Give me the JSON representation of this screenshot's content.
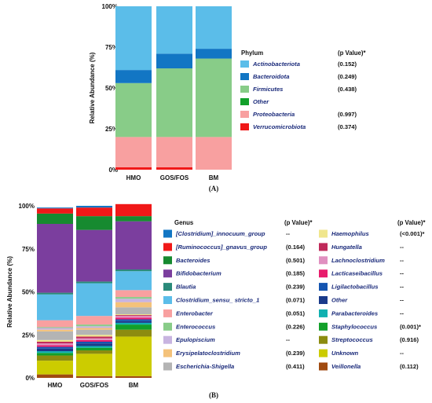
{
  "chart_data": [
    {
      "type": "bar",
      "stacked": true,
      "panel_label": "(A)",
      "ylabel": "Relative Abundance (%)",
      "y_ticks": [
        "0%",
        "25%",
        "50%",
        "75%",
        "100%"
      ],
      "ylim": [
        0,
        100
      ],
      "categories": [
        "HMO",
        "GOS/FOS",
        "BM"
      ],
      "legend_title": "Phylum",
      "legend_pvalue_title": "(p Value)*",
      "series": [
        {
          "name": "Verrucomicrobiota",
          "color": "#f01818",
          "pvalue": "(0.374)",
          "values": [
            1.5,
            1.5,
            0
          ]
        },
        {
          "name": "Proteobacteria",
          "color": "#f8a0a0",
          "pvalue": "(0.997)",
          "values": [
            18.5,
            18.5,
            20
          ]
        },
        {
          "name": "Other",
          "color": "#12a02a",
          "pvalue": "",
          "values": [
            0,
            0,
            0
          ]
        },
        {
          "name": "Firmicutes",
          "color": "#88cc88",
          "pvalue": "(0.438)",
          "values": [
            33,
            42,
            48
          ]
        },
        {
          "name": "Bacteroidota",
          "color": "#1276c4",
          "pvalue": "(0.249)",
          "values": [
            8,
            9,
            6
          ]
        },
        {
          "name": "Actinobacteriota",
          "color": "#5bbde9",
          "pvalue": "(0.152)",
          "values": [
            39,
            29,
            26
          ]
        }
      ]
    },
    {
      "type": "bar",
      "stacked": true,
      "panel_label": "(B)",
      "ylabel": "Relative Abundance (%)",
      "y_ticks": [
        "0%",
        "25%",
        "50%",
        "75%",
        "100%"
      ],
      "ylim": [
        0,
        100
      ],
      "categories": [
        "HMO",
        "GOS/FOS",
        "BM"
      ],
      "legend_title": "Genus",
      "legend_pvalue_title": "(p Value)*",
      "series": [
        {
          "name": "Veillonella",
          "color": "#a04a10",
          "pvalue": "(0.112)",
          "values": [
            2,
            1,
            1
          ]
        },
        {
          "name": "Unknown",
          "color": "#cccc00",
          "pvalue": "--",
          "values": [
            8,
            13,
            23
          ]
        },
        {
          "name": "Streptococcus",
          "color": "#8c8c10",
          "pvalue": "(0.916)",
          "values": [
            3,
            2,
            4
          ]
        },
        {
          "name": "Staphylococcus",
          "color": "#12a02a",
          "pvalue": "(0.001)*",
          "values": [
            1.5,
            1.5,
            3
          ]
        },
        {
          "name": "Parabacteroides",
          "color": "#10b0b0",
          "pvalue": "--",
          "values": [
            1,
            1,
            1
          ]
        },
        {
          "name": "Other",
          "color": "#1a3a8a",
          "pvalue": "--",
          "values": [
            1.5,
            1.5,
            1
          ]
        },
        {
          "name": "Ligilactobacillus",
          "color": "#1455b0",
          "pvalue": "--",
          "values": [
            1,
            1,
            1
          ]
        },
        {
          "name": "Lacticaseibacillus",
          "color": "#e81c6c",
          "pvalue": "--",
          "values": [
            1,
            1,
            1
          ]
        },
        {
          "name": "Lachnoclostridium",
          "color": "#e090c0",
          "pvalue": "--",
          "values": [
            1,
            1,
            1
          ]
        },
        {
          "name": "Hungatella",
          "color": "#c02a5a",
          "pvalue": "--",
          "values": [
            1,
            1,
            0.5
          ]
        },
        {
          "name": "Haemophilus",
          "color": "#f0e68c",
          "pvalue": "(<0.001)*",
          "values": [
            1,
            1,
            0.5
          ]
        },
        {
          "name": "Escherichia-Shigella",
          "color": "#b4b4b4",
          "pvalue": "(0.411)",
          "values": [
            5,
            3,
            4
          ]
        },
        {
          "name": "Erysipelatoclostridium",
          "color": "#f4c27a",
          "pvalue": "(0.239)",
          "values": [
            1,
            1,
            3
          ]
        },
        {
          "name": "Epulopiscium",
          "color": "#c8b4e0",
          "pvalue": "--",
          "values": [
            1,
            1,
            2
          ]
        },
        {
          "name": "Enterococcus",
          "color": "#88cc88",
          "pvalue": "(0.226)",
          "values": [
            0.5,
            1,
            1
          ]
        },
        {
          "name": "Enterobacter",
          "color": "#f8a0a0",
          "pvalue": "(0.051)",
          "values": [
            4,
            5,
            4
          ]
        },
        {
          "name": "Clostridium_sensu_ stricto_1",
          "color": "#5bbde9",
          "pvalue": "(0.071)",
          "values": [
            15,
            19,
            11
          ]
        },
        {
          "name": "Blautia",
          "color": "#2a8a7a",
          "pvalue": "(0.239)",
          "values": [
            1,
            1,
            1
          ]
        },
        {
          "name": "Bifidobacterium",
          "color": "#7b3e9e",
          "pvalue": "(0.185)",
          "values": [
            40,
            30,
            28
          ]
        },
        {
          "name": "Bacteroides",
          "color": "#168a30",
          "pvalue": "(0.501)",
          "values": [
            6,
            8,
            3
          ]
        },
        {
          "name": "[Ruminococcus]_gnavus_group",
          "color": "#f01818",
          "pvalue": "(0.164)",
          "values": [
            3,
            5,
            7
          ]
        },
        {
          "name": "[Clostridium]_innocuum_group",
          "color": "#1276c4",
          "pvalue": "--",
          "values": [
            0.5,
            1,
            0
          ]
        }
      ],
      "legend_columns": [
        [
          "[Clostridium]_innocuum_group",
          "[Ruminococcus]_gnavus_group",
          "Bacteroides",
          "Bifidobacterium",
          "Blautia",
          "Clostridium_sensu_ stricto_1",
          "Enterobacter",
          "Enterococcus",
          "Epulopiscium",
          "Erysipelatoclostridium",
          "Escherichia-Shigella"
        ],
        [
          "Haemophilus",
          "Hungatella",
          "Lachnoclostridium",
          "Lacticaseibacillus",
          "Ligilactobacillus",
          "Other",
          "Parabacteroides",
          "Staphylococcus",
          "Streptococcus",
          "Unknown",
          "Veillonella"
        ]
      ]
    }
  ]
}
